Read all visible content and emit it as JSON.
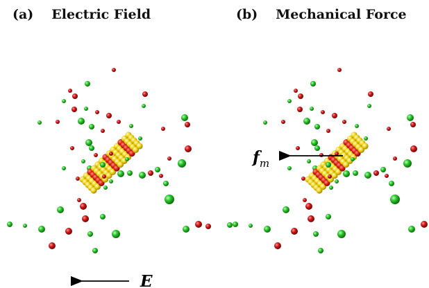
{
  "panels": [
    {
      "tag": "(a)",
      "title": "Electric Field"
    },
    {
      "tag": "(b)",
      "title": "Mechanical Force"
    }
  ],
  "labels": {
    "field_symbol": "E",
    "force_symbol": "f",
    "force_subscript": "m"
  },
  "colors": {
    "cation": "#2ec62e",
    "anion": "#d11a1a",
    "nanotube_body": "#f2d51a",
    "nanotube_ring": "#e0241a",
    "arrow": "#000000"
  }
}
